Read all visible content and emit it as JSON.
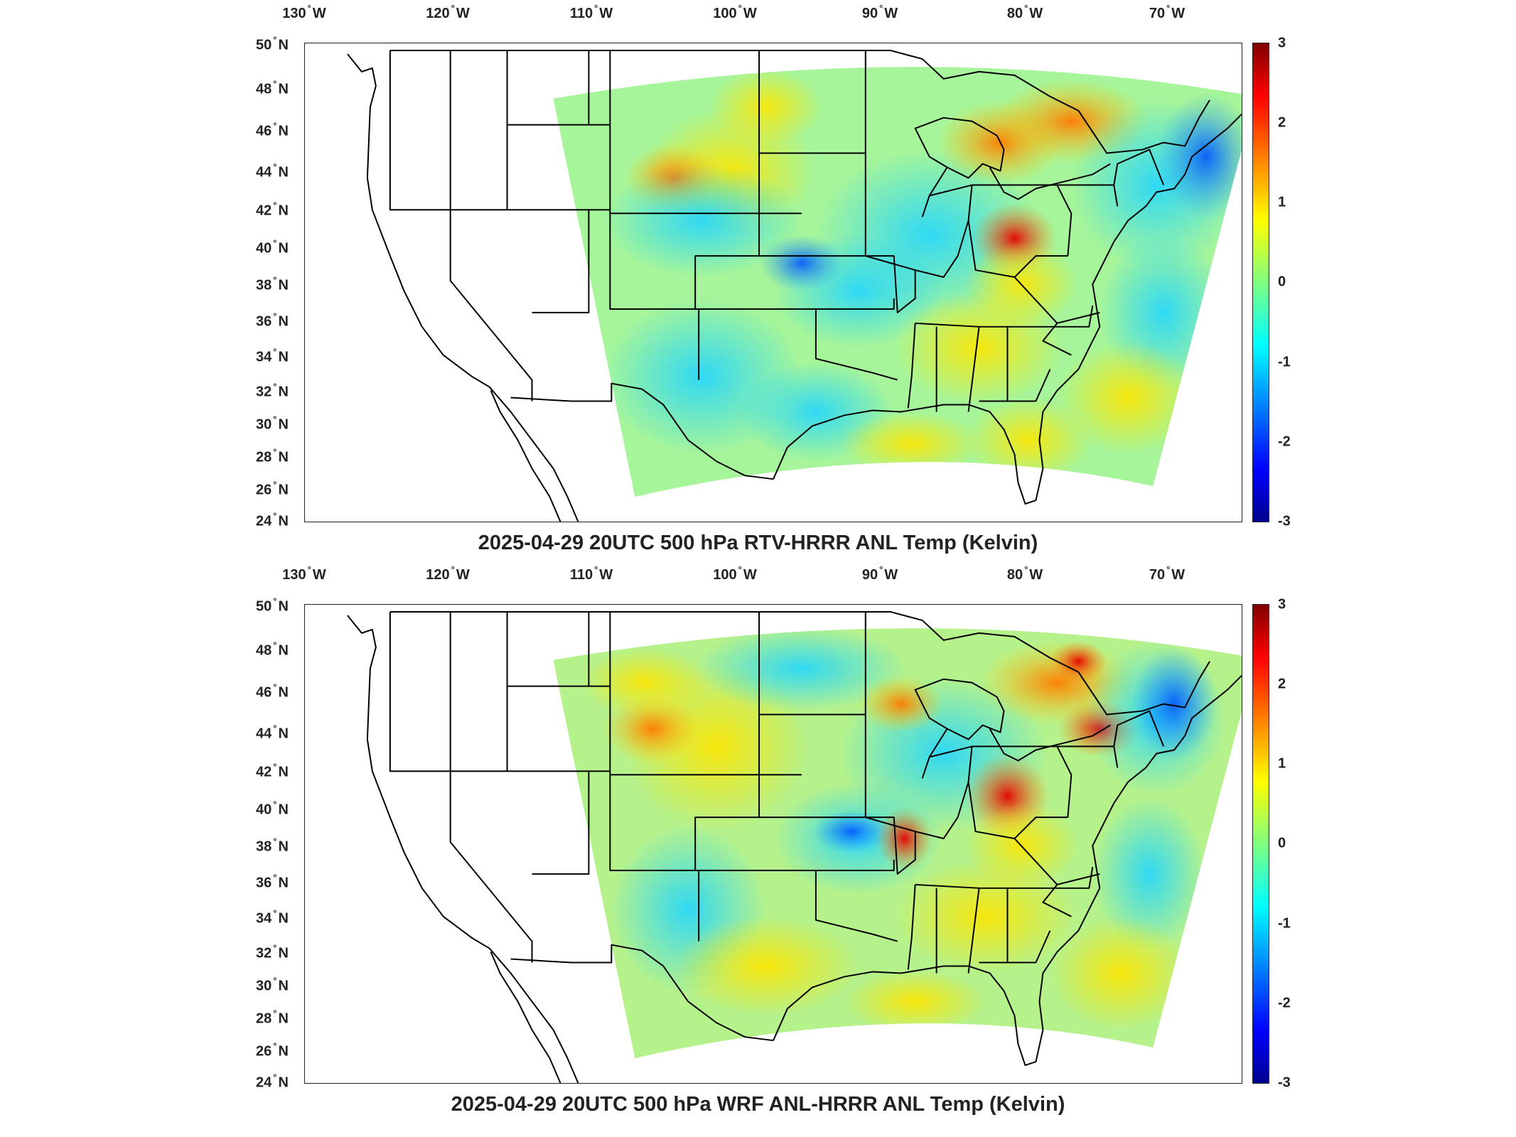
{
  "panels": [
    {
      "title": "2025-04-29 20UTC 500 hPa RTV-HRRR ANL Temp (Kelvin)",
      "lon_labels": [
        "130",
        "120",
        "110",
        "100",
        "90",
        "80",
        "70"
      ],
      "lat_labels": [
        "50",
        "48",
        "46",
        "44",
        "42",
        "40",
        "38",
        "36",
        "34",
        "32",
        "30",
        "28",
        "26",
        "24"
      ],
      "colorbar_ticks": [
        "3",
        "2",
        "1",
        "0",
        "-1",
        "-2",
        "-3"
      ]
    },
    {
      "title": "2025-04-29 20UTC 500 hPa WRF ANL-HRRR ANL Temp (Kelvin)",
      "lon_labels": [
        "130",
        "120",
        "110",
        "100",
        "90",
        "80",
        "70"
      ],
      "lat_labels": [
        "50",
        "48",
        "46",
        "44",
        "42",
        "40",
        "38",
        "36",
        "34",
        "32",
        "30",
        "28",
        "26",
        "24"
      ],
      "colorbar_ticks": [
        "3",
        "2",
        "1",
        "0",
        "-1",
        "-2",
        "-3"
      ]
    }
  ],
  "lon_suffix": "W",
  "lat_suffix": "N",
  "degree_symbol": "°",
  "colorbar": {
    "min": -3,
    "max": 3,
    "colormap": "jet"
  },
  "map_extent": {
    "lon_min": -131,
    "lon_max": -65,
    "lat_min": 24,
    "lat_max": 50
  }
}
